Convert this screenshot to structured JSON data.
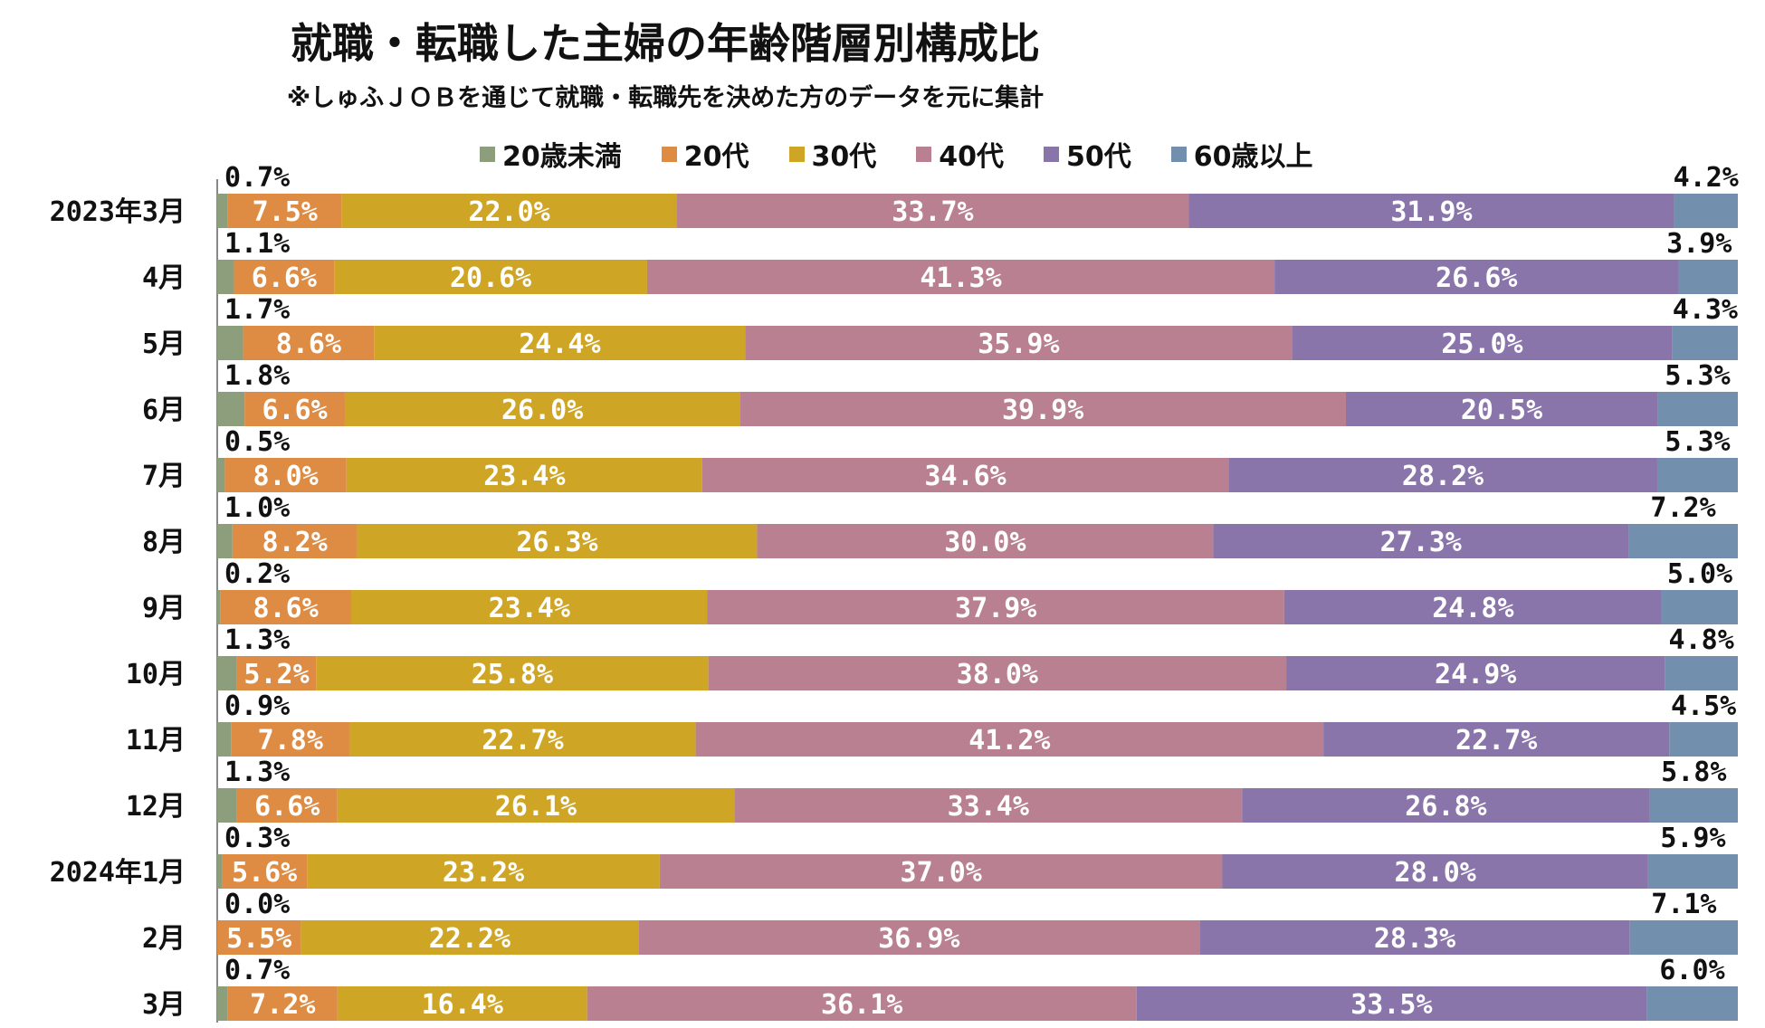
{
  "title": "就職・転職した主婦の年齢階層別構成比",
  "subtitle": "※しゅふＪＯＢを通じて就職・転職先を決めた方のデータを元に集計",
  "chart_data": {
    "type": "bar",
    "orientation": "horizontal",
    "stacked": "100%",
    "legend_position": "top",
    "categories": [
      "2023年3月",
      "4月",
      "5月",
      "6月",
      "7月",
      "8月",
      "9月",
      "10月",
      "11月",
      "12月",
      "2024年1月",
      "2月",
      "3月"
    ],
    "series": [
      {
        "name": "20歳未満",
        "color": "#8c9e7c",
        "values": [
          0.7,
          1.1,
          1.7,
          1.8,
          0.5,
          1.0,
          0.2,
          1.3,
          0.9,
          1.3,
          0.3,
          0.0,
          0.7
        ],
        "labels": [
          "0.7%",
          "1.1%",
          "1.7%",
          "1.8%",
          "0.5%",
          "1.0%",
          "0.2%",
          "1.3%",
          "0.9%",
          "1.3%",
          "0.3%",
          "0.0%",
          "0.7%"
        ]
      },
      {
        "name": "20代",
        "color": "#de8c44",
        "values": [
          7.5,
          6.6,
          8.6,
          6.6,
          8.0,
          8.2,
          8.6,
          5.2,
          7.8,
          6.6,
          5.6,
          5.5,
          7.2
        ],
        "labels": [
          "7.5%",
          "6.6%",
          "8.6%",
          "6.6%",
          "8.0%",
          "8.2%",
          "8.6%",
          "5.2%",
          "7.8%",
          "6.6%",
          "5.6%",
          "5.5%",
          "7.2%"
        ]
      },
      {
        "name": "30代",
        "color": "#cfa526",
        "values": [
          22.0,
          20.6,
          24.4,
          26.0,
          23.4,
          26.3,
          23.4,
          25.8,
          22.7,
          26.1,
          23.2,
          22.2,
          16.4
        ],
        "labels": [
          "22.0%",
          "20.6%",
          "24.4%",
          "26.0%",
          "23.4%",
          "26.3%",
          "23.4%",
          "25.8%",
          "22.7%",
          "26.1%",
          "23.2%",
          "22.2%",
          "16.4%"
        ]
      },
      {
        "name": "40代",
        "color": "#b88090",
        "values": [
          33.7,
          41.3,
          35.9,
          39.9,
          34.6,
          30.0,
          37.9,
          38.0,
          41.2,
          33.4,
          37.0,
          36.9,
          36.1
        ],
        "labels": [
          "33.7%",
          "41.3%",
          "35.9%",
          "39.9%",
          "34.6%",
          "30.0%",
          "37.9%",
          "38.0%",
          "41.2%",
          "33.4%",
          "37.0%",
          "36.9%",
          "36.1%"
        ]
      },
      {
        "name": "50代",
        "color": "#8a75ab",
        "values": [
          31.9,
          26.6,
          25.0,
          20.5,
          28.2,
          27.3,
          24.8,
          24.9,
          22.7,
          26.8,
          28.0,
          28.3,
          33.5
        ],
        "labels": [
          "31.9%",
          "26.6%",
          "25.0%",
          "20.5%",
          "28.2%",
          "27.3%",
          "24.8%",
          "24.9%",
          "22.7%",
          "26.8%",
          "28.0%",
          "28.3%",
          "33.5%"
        ]
      },
      {
        "name": "60歳以上",
        "color": "#7290ae",
        "values": [
          4.2,
          3.9,
          4.3,
          5.3,
          5.3,
          7.2,
          5.0,
          4.8,
          4.5,
          5.8,
          5.9,
          7.1,
          6.0
        ],
        "labels": [
          "4.2%",
          "3.9%",
          "4.3%",
          "5.3%",
          "5.3%",
          "7.2%",
          "5.0%",
          "4.8%",
          "4.5%",
          "5.8%",
          "5.9%",
          "7.1%",
          "6.0%"
        ]
      }
    ]
  }
}
